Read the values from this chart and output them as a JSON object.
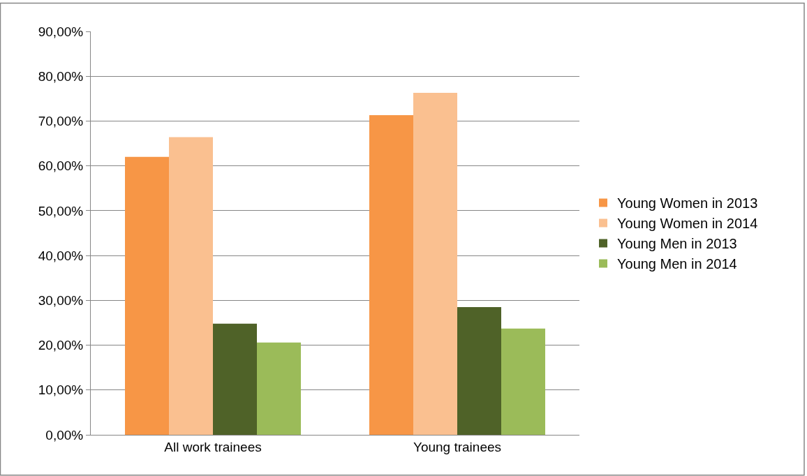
{
  "chart_data": {
    "type": "bar",
    "categories": [
      "All work trainees",
      "Young trainees"
    ],
    "series": [
      {
        "name": "Young Women in 2013",
        "color": "#f79646",
        "values": [
          62.0,
          71.3
        ]
      },
      {
        "name": "Young Women in 2014",
        "color": "#fac090",
        "values": [
          66.4,
          76.3
        ]
      },
      {
        "name": "Young Men in 2013",
        "color": "#4f6228",
        "values": [
          24.8,
          28.5
        ]
      },
      {
        "name": "Young Men in 2014",
        "color": "#9bbb59",
        "values": [
          20.6,
          23.7
        ]
      }
    ],
    "ylim": [
      0,
      90
    ],
    "yticks": [
      {
        "value": 0,
        "label": "0,00%"
      },
      {
        "value": 10,
        "label": "10,00%"
      },
      {
        "value": 20,
        "label": "20,00%"
      },
      {
        "value": 30,
        "label": "30,00%"
      },
      {
        "value": 40,
        "label": "40,00%"
      },
      {
        "value": 50,
        "label": "50,00%"
      },
      {
        "value": 60,
        "label": "60,00%"
      },
      {
        "value": 70,
        "label": "70,00%"
      },
      {
        "value": 80,
        "label": "80,00%"
      },
      {
        "value": 90,
        "label": "90,00%"
      }
    ],
    "grid": "y",
    "legend": "right"
  }
}
